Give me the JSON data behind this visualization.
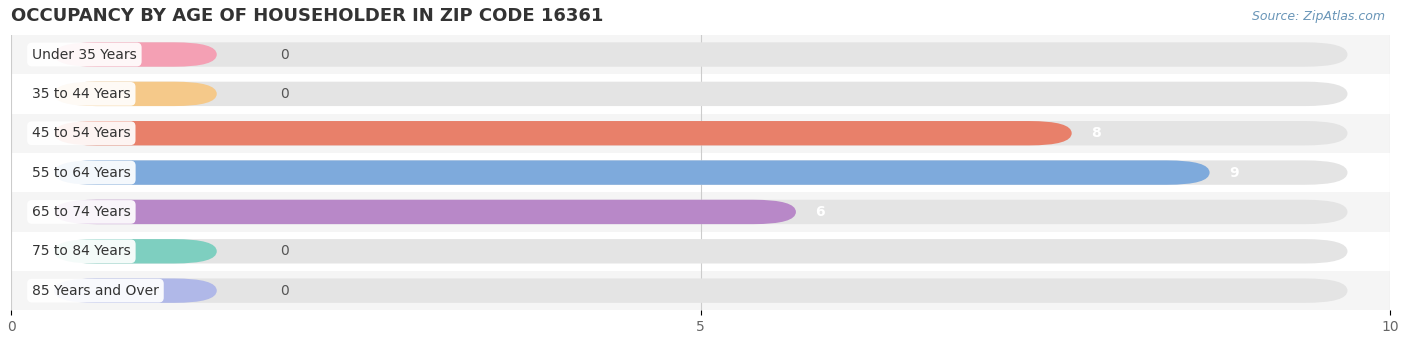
{
  "title": "OCCUPANCY BY AGE OF HOUSEHOLDER IN ZIP CODE 16361",
  "source": "Source: ZipAtlas.com",
  "categories": [
    "Under 35 Years",
    "35 to 44 Years",
    "45 to 54 Years",
    "55 to 64 Years",
    "65 to 74 Years",
    "75 to 84 Years",
    "85 Years and Over"
  ],
  "values": [
    0,
    0,
    8,
    9,
    6,
    0,
    0
  ],
  "bar_colors": [
    "#f4a0b4",
    "#f5c98a",
    "#e8806a",
    "#7eaadc",
    "#b888c8",
    "#7ecfc0",
    "#b0b8e8"
  ],
  "background_color": "#ffffff",
  "row_bg_colors": [
    "#f5f5f5",
    "#ffffff"
  ],
  "xlim": [
    0,
    10
  ],
  "xticks": [
    0,
    5,
    10
  ],
  "title_fontsize": 13,
  "label_fontsize": 10,
  "value_fontsize": 10,
  "bar_height": 0.62
}
